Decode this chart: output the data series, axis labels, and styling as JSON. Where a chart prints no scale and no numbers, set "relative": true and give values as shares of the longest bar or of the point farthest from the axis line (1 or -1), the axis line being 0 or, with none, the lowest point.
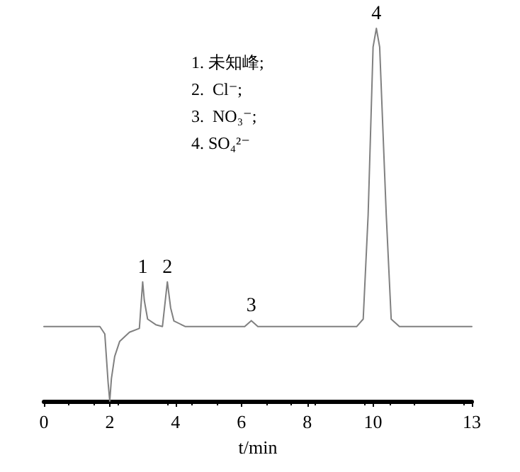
{
  "chart_data": {
    "type": "line",
    "relative": true,
    "xlabel": "t/min",
    "xlim": [
      0,
      13
    ],
    "xticks": [
      0,
      2,
      4,
      6,
      8,
      10,
      13
    ],
    "marker": "none",
    "line_style": "solid",
    "series": [
      {
        "color": "#808080",
        "x": [
          0,
          1.7,
          1.85,
          1.95,
          2.0,
          2.05,
          2.15,
          2.3,
          2.6,
          2.9,
          3.0,
          3.05,
          3.15,
          3.4,
          3.6,
          3.75,
          3.85,
          3.95,
          4.3,
          6.1,
          6.3,
          6.5,
          9.5,
          9.7,
          9.85,
          10.0,
          10.1,
          10.2,
          10.4,
          10.55,
          10.8,
          13
        ],
        "values": [
          0.2,
          0.2,
          0.18,
          0.05,
          0,
          0.06,
          0.12,
          0.16,
          0.185,
          0.195,
          0.32,
          0.27,
          0.22,
          0.205,
          0.2,
          0.32,
          0.25,
          0.215,
          0.2,
          0.2,
          0.216,
          0.2,
          0.2,
          0.22,
          0.5,
          0.95,
          1,
          0.95,
          0.5,
          0.22,
          0.2,
          0.2
        ]
      }
    ],
    "annotations": [
      {
        "text": "1",
        "x": 3.0,
        "y": 0.32
      },
      {
        "text": "2",
        "x": 3.75,
        "y": 0.32
      },
      {
        "text": "3",
        "x": 6.3,
        "y": 0.216
      },
      {
        "text": "4",
        "x": 10.1,
        "y": 1
      },
      "1. 未知峰;",
      "2.  Cl⁻;",
      "3.  NO₃⁻;",
      "4. SO₄²⁻"
    ]
  }
}
